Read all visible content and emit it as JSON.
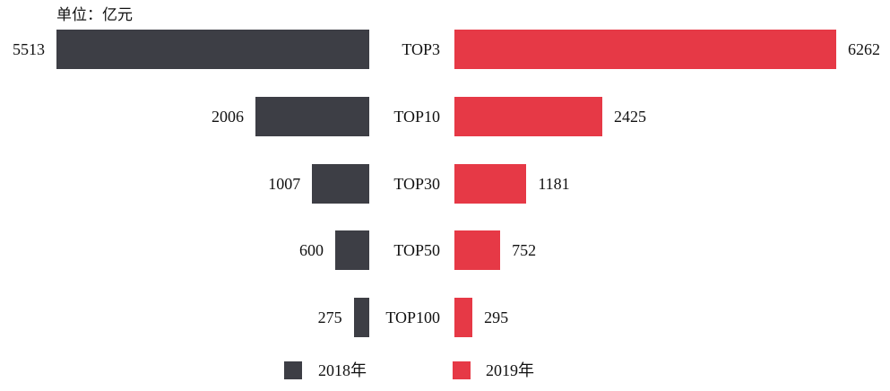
{
  "chart_data": {
    "type": "bar",
    "orientation": "horizontal-mirrored",
    "annotation": "单位：亿元",
    "categories": [
      "TOP3",
      "TOP10",
      "TOP30",
      "TOP50",
      "TOP100"
    ],
    "series": [
      {
        "name": "2018年",
        "values": [
          5513,
          2006,
          1007,
          600,
          275
        ],
        "color": "#3d3e45"
      },
      {
        "name": "2019年",
        "values": [
          6262,
          2425,
          1181,
          752,
          295
        ],
        "color": "#e63946"
      }
    ],
    "data_labels": true,
    "grid": false,
    "legend": "bottom-center"
  }
}
